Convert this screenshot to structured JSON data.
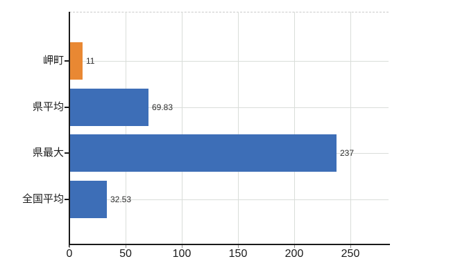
{
  "chart_data": {
    "type": "bar",
    "orientation": "horizontal",
    "categories": [
      "岬町",
      "県平均",
      "県最大",
      "全国平均"
    ],
    "values": [
      11,
      69.83,
      237,
      32.53
    ],
    "value_labels": [
      "11",
      "69.83",
      "237",
      "32.53"
    ],
    "series_colors": [
      "#e98833",
      "#3d6eb7",
      "#3d6eb7",
      "#3d6eb7"
    ],
    "x_ticks": [
      0,
      50,
      100,
      150,
      200,
      250
    ],
    "xlim": [
      0,
      284
    ],
    "grid": true,
    "legend": "none",
    "title": ""
  },
  "colors": {
    "highlight_bar": "#e98833",
    "default_bar": "#3d6eb7",
    "gridline": "#d9ddd9",
    "axis": "#1a1a1a",
    "text": "#1a1a1a"
  }
}
